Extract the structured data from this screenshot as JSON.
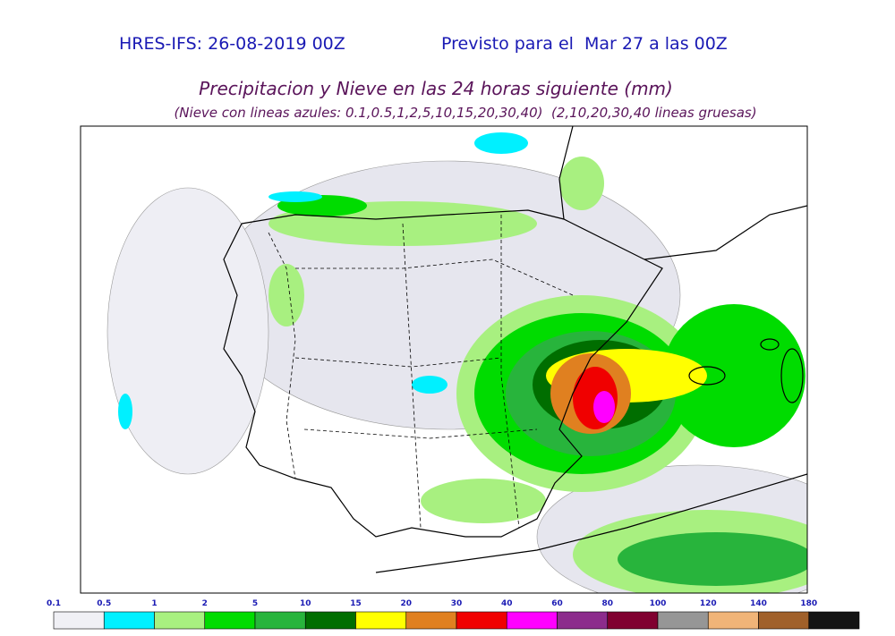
{
  "header": {
    "run": "HRES-IFS: 26-08-2019 00Z",
    "valid": "Previsto para el  Mar 27 a las 00Z"
  },
  "title": "Precipitacion y Nieve en las 24 horas siguiente (mm)",
  "subtitle": "(Nieve con lineas azules: 0.1,0.5,1,2,5,10,15,20,30,40)  (2,10,20,30,40 lineas gruesas)",
  "legend": {
    "labels": [
      "0.1",
      "0.5",
      "1",
      "2",
      "5",
      "10",
      "15",
      "20",
      "30",
      "40",
      "60",
      "80",
      "100",
      "120",
      "140",
      "180"
    ],
    "colors": [
      "#f0f0f5",
      "#00f0ff",
      "#a8f080",
      "#00dc00",
      "#28b43c",
      "#006e00",
      "#ffff00",
      "#e08020",
      "#f00000",
      "#ff00ff",
      "#8c2c8c",
      "#800030",
      "#969696",
      "#f0b478",
      "#a0602a",
      "#141414"
    ]
  }
}
